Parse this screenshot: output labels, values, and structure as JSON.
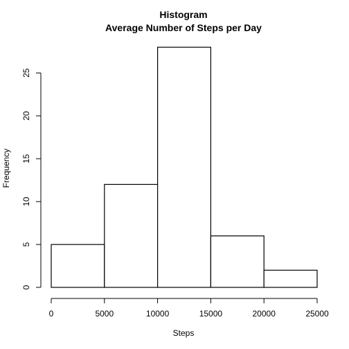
{
  "chart_data": {
    "type": "bar",
    "title": "Histogram",
    "subtitle": "Average Number of Steps per Day",
    "xlabel": "Steps",
    "ylabel": "Frequency",
    "bins": [
      {
        "from": 0,
        "to": 5000,
        "count": 5
      },
      {
        "from": 5000,
        "to": 10000,
        "count": 12
      },
      {
        "from": 10000,
        "to": 15000,
        "count": 28
      },
      {
        "from": 15000,
        "to": 20000,
        "count": 6
      },
      {
        "from": 20000,
        "to": 25000,
        "count": 2
      }
    ],
    "xlim": [
      0,
      25000
    ],
    "ylim": [
      0,
      29
    ],
    "xticks": [
      0,
      5000,
      10000,
      15000,
      20000,
      25000
    ],
    "yticks": [
      0,
      5,
      10,
      15,
      20,
      25
    ],
    "grid": false,
    "legend": "none"
  }
}
